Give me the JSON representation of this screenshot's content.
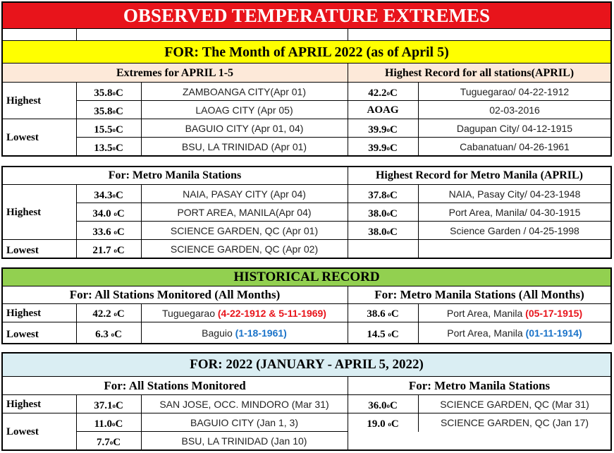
{
  "title": "OBSERVED TEMPERATURE EXTREMES",
  "for_banner": "FOR:   The Month of APRIL 2022 (as of  April 5)",
  "unit": "C",
  "section1": {
    "left_header": "Extremes for APRIL 1-5",
    "right_header": "Highest Record for all stations(APRIL)",
    "highest_label": "Highest",
    "lowest_label": "Lowest",
    "rows": [
      {
        "value": "35.8",
        "station": "ZAMBOANGA CITY(Apr 01)",
        "rec_value": "42.2",
        "rec_unit": "C",
        "rec_station": "Tuguegarao/ 04-22-1912"
      },
      {
        "value": "35.8",
        "station": "LAOAG CITY (Apr 05)",
        "rec_value": "AOAG",
        "rec_unit": "",
        "rec_station": "02-03-2016"
      },
      {
        "value": "15.5",
        "station": "BAGUIO CITY  (Apr 01, 04)",
        "rec_value": "39.9",
        "rec_unit": "C",
        "rec_station": "Dagupan City/ 04-12-1915"
      },
      {
        "value": "13.5",
        "station": "BSU, LA TRINIDAD (Apr 01)",
        "rec_value": "39.9",
        "rec_unit": "C",
        "rec_station": "Cabanatuan/ 04-26-1961"
      }
    ]
  },
  "section2": {
    "left_header": "For: Metro Manila Stations",
    "right_header": "Highest Record for Metro Manila (APRIL)",
    "highest_label": "Highest",
    "lowest_label": "Lowest",
    "rows": [
      {
        "value": "34.3",
        "station": "NAIA, PASAY CITY (Apr 04)",
        "rec_value": "37.8",
        "rec_station": "NAIA, Pasay City/  04-23-1948"
      },
      {
        "value": "34.0",
        "station": "PORT AREA, MANILA(Apr 04)",
        "rec_value": "38.0",
        "rec_station": "Port Area, Manila/ 04-30-1915"
      },
      {
        "value": "33.6",
        "station": "SCIENCE GARDEN, QC (Apr 01)",
        "rec_value": "38.0",
        "rec_station": "Science Garden /  04-25-1998"
      },
      {
        "value": "21.7",
        "station": "SCIENCE GARDEN, QC (Apr 02)",
        "rec_value": "",
        "rec_station": ""
      }
    ]
  },
  "historical": {
    "header": "HISTORICAL RECORD",
    "left_header": "For:  All Stations Monitored (All Months)",
    "right_header": "For: Metro Manila Stations (All Months)",
    "highest": {
      "label": "Highest",
      "value": "42.2",
      "station": "Tuguegarao",
      "date": "(4-22-1912 & 5-11-1969)",
      "mm_value": "38.6",
      "mm_station": "Port Area, Manila",
      "mm_date": "(05-17-1915)"
    },
    "lowest": {
      "label": "Lowest",
      "value": "6.3",
      "station": "Baguio",
      "date": "(1-18-1961)",
      "mm_value": "14.5",
      "mm_station": "Port Area, Manila",
      "mm_date": "(01-11-1914)"
    }
  },
  "year2022": {
    "header": "FOR:    2022 (JANUARY - APRIL 5, 2022)",
    "left_header": "For:  All Stations Monitored",
    "right_header": "For: Metro Manila Stations",
    "highest_label": "Highest",
    "lowest_label": "Lowest",
    "rows": [
      {
        "value": "37.1",
        "station": "SAN JOSE, OCC. MINDORO (Mar 31)",
        "mm_value": "36.0",
        "mm_station": "SCIENCE GARDEN, QC (Mar 31)"
      },
      {
        "value": "11.0",
        "station": "BAGUIO CITY  (Jan 1, 3)",
        "mm_value": "19.0",
        "mm_station": "SCIENCE GARDEN, QC (Jan 17)"
      },
      {
        "value": "7.7",
        "station": "BSU, LA TRINIDAD (Jan 10)",
        "mm_value": "",
        "mm_station": ""
      }
    ]
  },
  "colors": {
    "title_bg": "#e8141b",
    "banner_bg": "#ffff00",
    "header_bg": "#fde9d9",
    "historical_bg": "#92d050",
    "year_bg": "#daeef3",
    "red_text": "#e8141b",
    "blue_text": "#1a73c9"
  }
}
